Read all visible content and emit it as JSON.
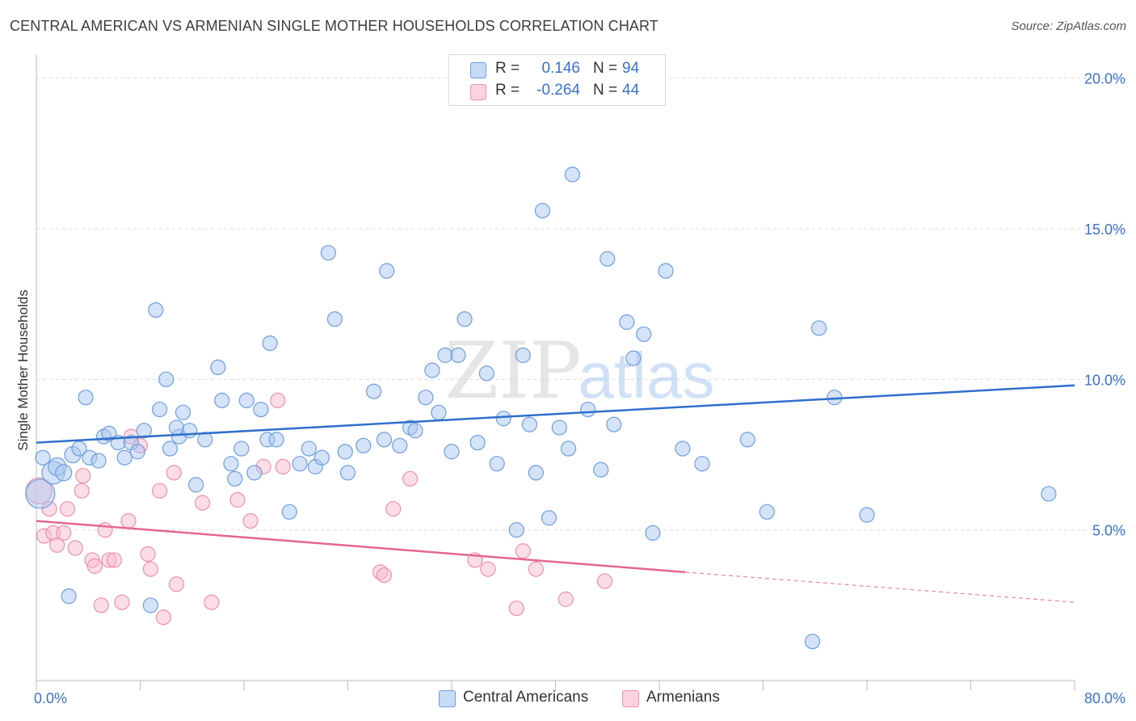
{
  "title": "CENTRAL AMERICAN VS ARMENIAN SINGLE MOTHER HOUSEHOLDS CORRELATION CHART",
  "source": "Source: ZipAtlas.com",
  "watermark": {
    "zip": "ZIP",
    "atlas": "atlas"
  },
  "legend": {
    "r_label": "R =",
    "n_label": "N =",
    "rows": [
      {
        "r": "0.146",
        "n": "94"
      },
      {
        "r": "-0.264",
        "n": "44"
      }
    ]
  },
  "colors": {
    "blue_fill": "#a9c8f0",
    "blue_stroke": "#6f9edb",
    "blue_line": "#2f6fcc",
    "pink_fill": "#f7bcd0",
    "pink_stroke": "#ec8fae",
    "pink_line": "#e4678f",
    "grid": "#dcdcdc",
    "tick_text": "#3b6fcf"
  },
  "chart_data": {
    "type": "scatter",
    "title": "CENTRAL AMERICAN VS ARMENIAN SINGLE MOTHER HOUSEHOLDS CORRELATION CHART",
    "xlabel": "",
    "ylabel": "Single Mother Households",
    "xlim": [
      0,
      80
    ],
    "ylim": [
      0,
      20.5
    ],
    "x_tick_labels": [
      "0.0%",
      "80.0%"
    ],
    "y_ticks": [
      5,
      10,
      15,
      20
    ],
    "y_tick_labels": [
      "5.0%",
      "10.0%",
      "15.0%",
      "20.0%"
    ],
    "grid": true,
    "legend_position": "bottom",
    "series": [
      {
        "name": "Central Americans",
        "r": 0.146,
        "n": 94,
        "trend": {
          "x": [
            0,
            80
          ],
          "y": [
            7.9,
            9.8
          ]
        },
        "x": [
          0.3,
          1.3,
          1.6,
          2.1,
          2.8,
          3.3,
          4.1,
          4.8,
          5.2,
          5.6,
          6.3,
          7.3,
          7.8,
          8.3,
          9.5,
          10.3,
          11.0,
          10.8,
          11.3,
          11.8,
          12.3,
          13.0,
          14.0,
          14.3,
          15.0,
          15.3,
          15.8,
          16.2,
          16.8,
          17.3,
          17.8,
          18.0,
          18.5,
          19.5,
          20.3,
          21.0,
          21.5,
          22.0,
          22.5,
          23.0,
          23.8,
          24.0,
          25.2,
          26.0,
          27.0,
          28.0,
          28.8,
          29.2,
          30.0,
          30.5,
          31.0,
          31.5,
          32.0,
          32.5,
          33.0,
          34.0,
          34.7,
          35.5,
          36.0,
          37.0,
          37.5,
          38.0,
          38.5,
          39.0,
          39.5,
          40.3,
          41.0,
          41.3,
          42.5,
          43.5,
          44.0,
          44.5,
          45.5,
          46.0,
          46.8,
          47.5,
          48.5,
          51.3,
          56.3,
          59.8,
          60.3,
          61.5,
          64.0,
          6.8,
          8.8,
          10.0,
          3.8,
          2.5,
          9.2,
          26.8,
          49.8,
          54.8,
          0.5,
          78.0
        ],
        "y": [
          6.2,
          6.9,
          7.1,
          6.9,
          7.5,
          7.7,
          7.4,
          7.3,
          8.1,
          8.2,
          7.9,
          7.9,
          7.6,
          8.3,
          9.0,
          7.7,
          8.1,
          8.4,
          8.9,
          8.3,
          6.5,
          8.0,
          10.4,
          9.3,
          7.2,
          6.7,
          7.7,
          9.3,
          6.9,
          9.0,
          8.0,
          11.2,
          8.0,
          5.6,
          7.2,
          7.7,
          7.1,
          7.4,
          14.2,
          12.0,
          7.6,
          6.9,
          7.8,
          9.6,
          13.6,
          7.8,
          8.4,
          8.3,
          9.4,
          10.3,
          8.9,
          10.8,
          7.6,
          10.8,
          12.0,
          7.9,
          10.2,
          7.2,
          8.7,
          5.0,
          10.8,
          8.5,
          6.9,
          15.6,
          5.4,
          8.4,
          7.7,
          16.8,
          9.0,
          7.0,
          14.0,
          8.5,
          11.9,
          10.7,
          11.5,
          4.9,
          13.6,
          7.2,
          5.6,
          1.3,
          11.7,
          9.4,
          5.5,
          7.4,
          2.5,
          10.0,
          9.4,
          2.8,
          12.3,
          8.0,
          7.7,
          8.0,
          7.4,
          6.2
        ],
        "sizes": [
          36,
          28,
          22,
          20,
          20,
          18,
          18,
          18,
          18,
          18,
          18,
          18,
          18,
          18,
          18,
          18,
          18,
          18,
          18,
          18,
          18,
          18,
          18,
          18,
          18,
          18,
          18,
          18,
          18,
          18,
          18,
          18,
          18,
          18,
          18,
          18,
          18,
          18,
          18,
          18,
          18,
          18,
          18,
          18,
          18,
          18,
          18,
          18,
          18,
          18,
          18,
          18,
          18,
          18,
          18,
          18,
          18,
          18,
          18,
          18,
          18,
          18,
          18,
          18,
          18,
          18,
          18,
          18,
          18,
          18,
          18,
          18,
          18,
          18,
          18,
          18,
          18,
          18,
          18,
          18,
          18,
          18,
          18,
          18,
          18,
          18,
          18,
          18,
          18,
          18,
          18,
          18,
          18,
          18
        ]
      },
      {
        "name": "Armenians",
        "r": -0.264,
        "n": 44,
        "trend": {
          "x": [
            0,
            50
          ],
          "y": [
            5.3,
            3.6
          ]
        },
        "trend_dashed": {
          "x": [
            50,
            80
          ],
          "y": [
            3.6,
            2.6
          ]
        },
        "x": [
          0.2,
          0.6,
          1.0,
          1.3,
          1.6,
          2.1,
          2.4,
          3.0,
          3.5,
          3.6,
          4.3,
          4.5,
          5.0,
          5.3,
          5.6,
          6.0,
          6.6,
          7.1,
          7.3,
          8.0,
          8.6,
          8.8,
          9.5,
          9.8,
          10.6,
          10.8,
          12.8,
          13.5,
          15.5,
          16.5,
          17.5,
          18.6,
          19.0,
          26.5,
          26.8,
          27.5,
          28.8,
          33.8,
          34.8,
          37.0,
          37.5,
          38.5,
          40.8,
          43.8
        ],
        "y": [
          6.3,
          4.8,
          5.7,
          4.9,
          4.5,
          4.9,
          5.7,
          4.4,
          6.3,
          6.8,
          4.0,
          3.8,
          2.5,
          5.0,
          4.0,
          4.0,
          2.6,
          5.3,
          8.1,
          7.8,
          4.2,
          3.7,
          6.3,
          2.1,
          6.9,
          3.2,
          5.9,
          2.6,
          6.0,
          5.3,
          7.1,
          9.3,
          7.1,
          3.6,
          3.5,
          5.7,
          6.7,
          4.0,
          3.7,
          2.4,
          4.3,
          3.7,
          2.7,
          3.3
        ],
        "sizes": [
          32,
          18,
          18,
          18,
          18,
          18,
          18,
          18,
          18,
          18,
          18,
          18,
          18,
          18,
          18,
          18,
          18,
          18,
          18,
          18,
          18,
          18,
          18,
          18,
          18,
          18,
          18,
          18,
          18,
          18,
          18,
          18,
          18,
          18,
          18,
          18,
          18,
          18,
          18,
          18,
          18,
          18,
          18,
          18
        ]
      }
    ]
  }
}
